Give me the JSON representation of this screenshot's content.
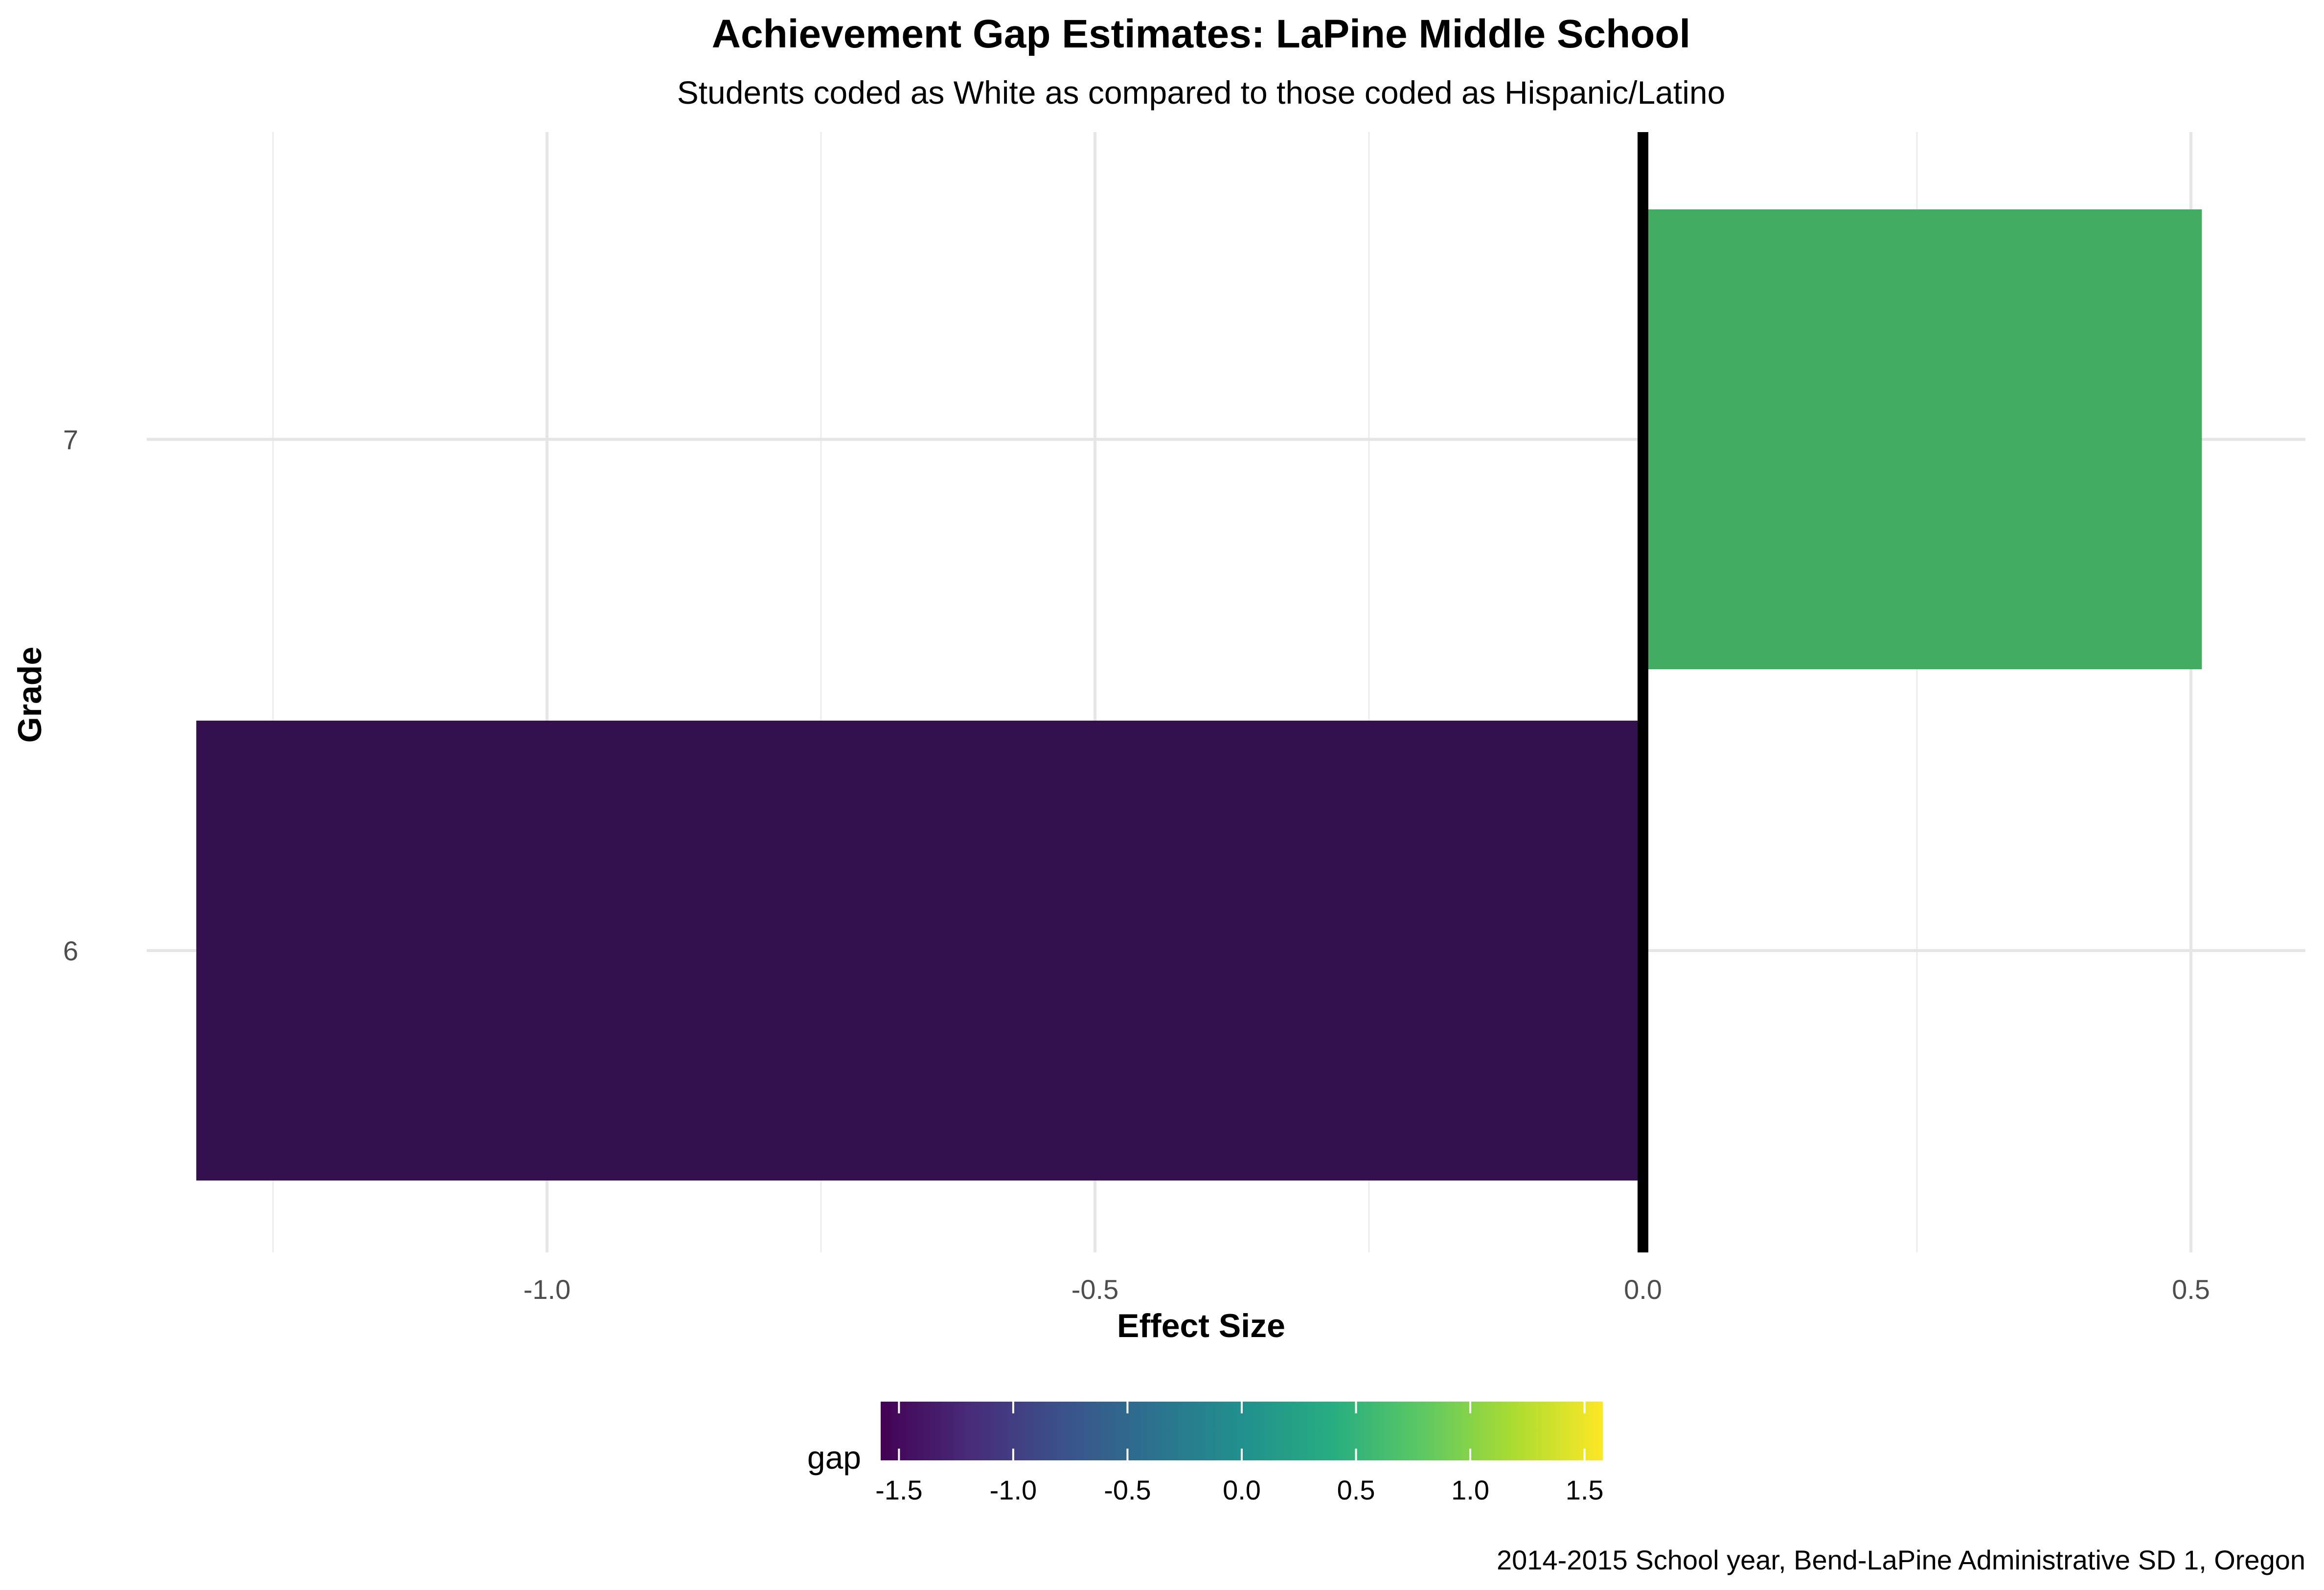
{
  "chart_data": {
    "type": "bar",
    "orientation": "horizontal",
    "title": "Achievement Gap Estimates: LaPine Middle School",
    "subtitle": "Students coded as White as compared to those coded as Hispanic/Latino",
    "xlabel": "Effect Size",
    "ylabel": "Grade",
    "caption": "2014-2015 School year, Bend-LaPine Administrative SD 1, Oregon",
    "categories": [
      "6",
      "7"
    ],
    "values": [
      -1.32,
      0.51
    ],
    "bar_colors": [
      "#35104e",
      "#42ac62"
    ],
    "xlim": [
      -1.25,
      0.55
    ],
    "x_ticks": [
      -1.0,
      -0.5,
      0.0,
      0.5
    ],
    "x_tick_labels": [
      "-1.0",
      "-0.5",
      "0.0",
      "0.5"
    ],
    "reference_line": 0,
    "grid": true,
    "legend": {
      "title": "gap",
      "position": "bottom",
      "type": "colorbar",
      "palette": "viridis",
      "range": [
        -1.58,
        1.58
      ],
      "ticks": [
        -1.5,
        -1.0,
        -0.5,
        0.0,
        0.5,
        1.0,
        1.5
      ],
      "tick_labels": [
        "-1.5",
        "-1.0",
        "-0.5",
        "0.0",
        "0.5",
        "1.0",
        "1.5"
      ]
    }
  }
}
